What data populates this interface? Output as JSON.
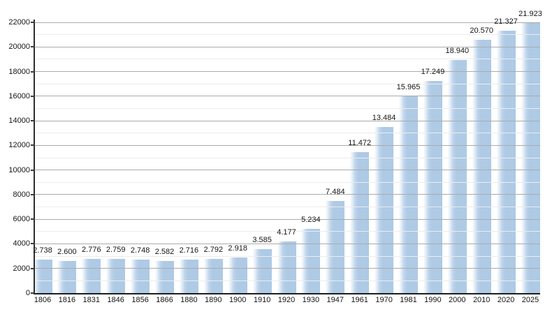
{
  "chart_data": {
    "type": "bar",
    "title": "",
    "xlabel": "",
    "ylabel": "",
    "categories": [
      "1806",
      "1816",
      "1831",
      "1846",
      "1856",
      "1866",
      "1880",
      "1890",
      "1900",
      "1910",
      "1920",
      "1930",
      "1947",
      "1961",
      "1970",
      "1981",
      "1990",
      "2000",
      "2010",
      "2020",
      "2025"
    ],
    "values": [
      2738,
      2600,
      2776,
      2759,
      2748,
      2582,
      2716,
      2792,
      2918,
      3585,
      4177,
      5234,
      7484,
      11472,
      13484,
      15965,
      17249,
      18940,
      20570,
      21327,
      21923
    ],
    "value_labels": [
      "2.738",
      "2.600",
      "2.776",
      "2.759",
      "2.748",
      "2.582",
      "2.716",
      "2.792",
      "2.918",
      "3.585",
      "4.177",
      "5.234",
      "7.484",
      "11.472",
      "13.484",
      "15.965",
      "17.249",
      "18.940",
      "20.570",
      "21.327",
      "21.923"
    ],
    "ylim": [
      0,
      22000
    ],
    "ytick_major_step": 2000,
    "ytick_minor_step": 1000,
    "ytick_labels": [
      "0",
      "2000",
      "4000",
      "6000",
      "8000",
      "10000",
      "12000",
      "14000",
      "16000",
      "18000",
      "20000",
      "22000"
    ],
    "grid": "major and minor horizontal gridlines, drawn over bars",
    "legend": "none",
    "colors": {
      "bar_fill": "#aecae5",
      "bar_gradient_left": "#ffffff",
      "gridline_major": "#ababab",
      "gridline_minor": "#ececec",
      "axis": "#1d1d1d",
      "text": "#151515",
      "background": "#ffffff"
    }
  }
}
